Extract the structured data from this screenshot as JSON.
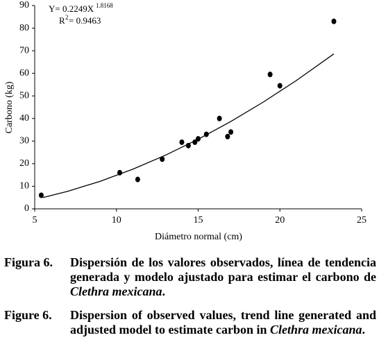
{
  "chart_data": {
    "type": "scatter",
    "xlabel": "Diámetro normal (cm)",
    "ylabel": "Carbono (kg)",
    "equation": {
      "lhs": "Y= 0.2249X",
      "exp": "1.8168",
      "r": "R",
      "r_exp": "2",
      "r_rhs": "= 0.9463"
    },
    "x": [
      5.4,
      10.2,
      11.3,
      12.8,
      14.0,
      14.4,
      14.8,
      15.0,
      15.5,
      16.3,
      16.8,
      17.0,
      19.4,
      20.0,
      23.3
    ],
    "values": [
      6,
      16,
      13,
      22,
      29.5,
      28,
      29.5,
      31,
      33,
      40,
      32,
      34,
      59.5,
      54.5,
      83
    ],
    "color": "#000000",
    "trend": {
      "x": [
        5.5,
        7,
        9,
        11,
        13,
        15,
        17,
        19,
        21,
        23.3
      ],
      "values": [
        4.98,
        7.72,
        12.18,
        17.54,
        23.75,
        30.81,
        38.67,
        47.34,
        56.79,
        68.6
      ]
    },
    "xlim": [
      5,
      25
    ],
    "ylim": [
      0,
      90
    ],
    "xticks": [
      5,
      10,
      15,
      20,
      25
    ],
    "yticks": [
      0,
      10,
      20,
      30,
      40,
      50,
      60,
      70,
      80,
      90
    ]
  },
  "captions": [
    {
      "label": "Figura 6.",
      "text": "Dispersión de los valores observados, línea de tendencia generada y modelo ajustado para estimar el carbono de ",
      "italic": "Clethra mexicana",
      "end": "."
    },
    {
      "label": "Figure 6.",
      "text": "Dispersion of observed values, trend line generated and adjusted model to estimate carbon in ",
      "italic": "Clethra mexicana",
      "end": "."
    }
  ]
}
